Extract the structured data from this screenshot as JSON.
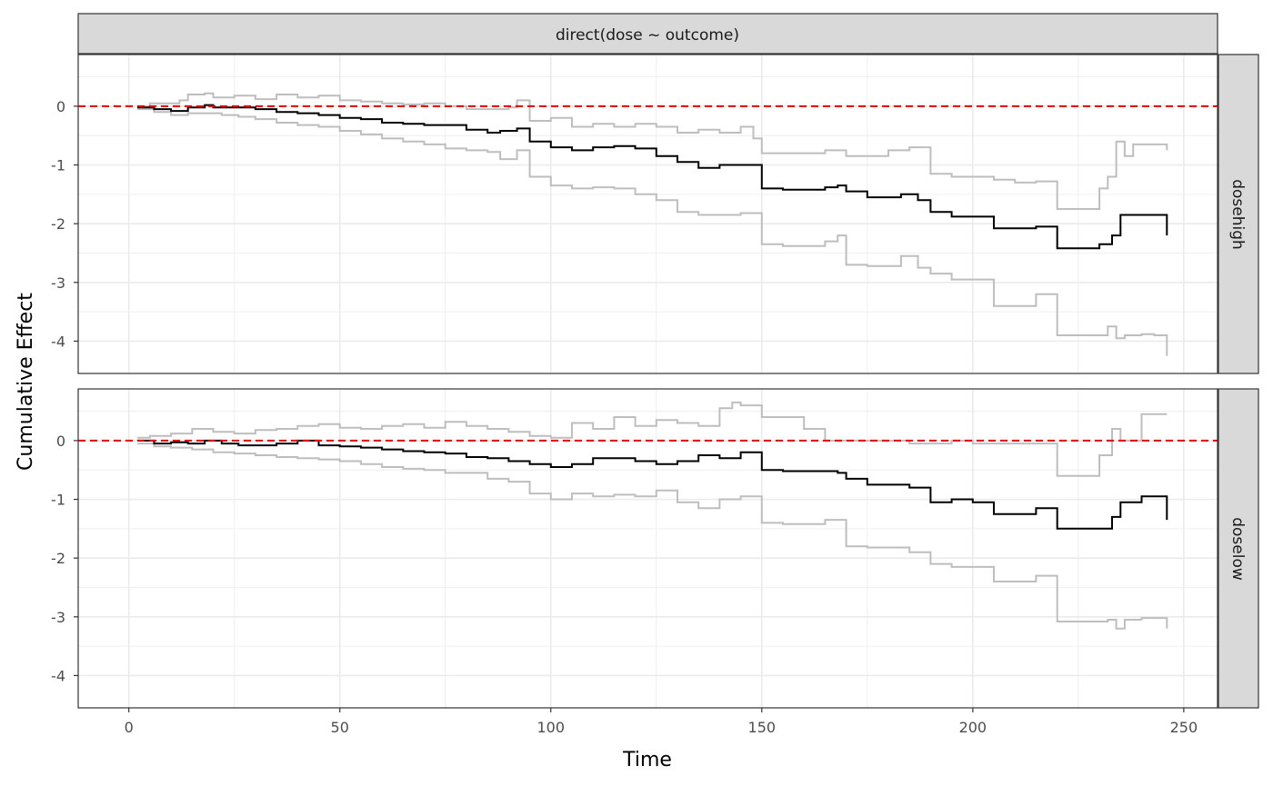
{
  "chart_data": {
    "type": "line",
    "strip_top": "direct(dose ~ outcome)",
    "xlabel": "Time",
    "ylabel": "Cumulative Effect",
    "xlim": [
      -12,
      258
    ],
    "ylim": [
      -4.55,
      0.88
    ],
    "x_ticks": [
      0,
      50,
      100,
      150,
      200,
      250
    ],
    "y_ticks": [
      0,
      -1,
      -2,
      -3,
      -4
    ],
    "reference_line": {
      "y": 0,
      "color": "#ee0000",
      "style": "dashed"
    },
    "grid": true,
    "colors": {
      "estimate": "#000000",
      "band": "#bebebe",
      "strip_fill": "#d9d9d9",
      "grid": "#ebebeb"
    },
    "panels": [
      {
        "name": "dosehigh",
        "series": [
          {
            "role": "upper",
            "x": [
              2,
              5,
              8,
              12,
              14,
              18,
              20,
              25,
              30,
              35,
              40,
              45,
              50,
              55,
              60,
              65,
              70,
              75,
              80,
              85,
              90,
              92,
              95,
              100,
              105,
              110,
              115,
              120,
              125,
              130,
              135,
              140,
              145,
              148,
              150,
              160,
              165,
              170,
              175,
              180,
              185,
              190,
              195,
              200,
              205,
              210,
              215,
              220,
              225,
              228,
              230,
              232,
              234,
              236,
              238,
              240,
              243,
              246
            ],
            "y": [
              0.0,
              0.05,
              0.05,
              0.1,
              0.2,
              0.22,
              0.15,
              0.18,
              0.12,
              0.2,
              0.15,
              0.18,
              0.1,
              0.08,
              0.05,
              0.03,
              0.05,
              0.0,
              -0.05,
              -0.05,
              -0.02,
              0.1,
              -0.25,
              -0.2,
              -0.35,
              -0.3,
              -0.35,
              -0.3,
              -0.35,
              -0.45,
              -0.4,
              -0.45,
              -0.35,
              -0.55,
              -0.8,
              -0.8,
              -0.75,
              -0.85,
              -0.85,
              -0.75,
              -0.7,
              -1.15,
              -1.2,
              -1.2,
              -1.25,
              -1.3,
              -1.28,
              -1.75,
              -1.75,
              -1.75,
              -1.4,
              -1.2,
              -0.6,
              -0.85,
              -0.65,
              -0.65,
              -0.65,
              -0.75
            ]
          },
          {
            "role": "estimate",
            "x": [
              2,
              6,
              10,
              14,
              18,
              20,
              25,
              30,
              35,
              40,
              45,
              50,
              55,
              60,
              65,
              70,
              75,
              80,
              85,
              88,
              92,
              95,
              100,
              105,
              110,
              115,
              120,
              125,
              130,
              135,
              140,
              145,
              150,
              155,
              160,
              165,
              168,
              170,
              175,
              180,
              183,
              187,
              190,
              195,
              200,
              205,
              210,
              215,
              220,
              225,
              230,
              233,
              235,
              240,
              243,
              246
            ],
            "y": [
              -0.02,
              -0.05,
              -0.08,
              -0.02,
              0.02,
              -0.02,
              -0.02,
              -0.05,
              -0.1,
              -0.12,
              -0.15,
              -0.2,
              -0.22,
              -0.28,
              -0.3,
              -0.32,
              -0.32,
              -0.4,
              -0.45,
              -0.42,
              -0.38,
              -0.6,
              -0.7,
              -0.75,
              -0.7,
              -0.68,
              -0.72,
              -0.85,
              -0.95,
              -1.05,
              -1.0,
              -1.0,
              -1.4,
              -1.42,
              -1.42,
              -1.38,
              -1.35,
              -1.45,
              -1.55,
              -1.55,
              -1.5,
              -1.6,
              -1.8,
              -1.88,
              -1.88,
              -2.08,
              -2.08,
              -2.05,
              -2.42,
              -2.42,
              -2.35,
              -2.2,
              -1.85,
              -1.85,
              -1.85,
              -2.2
            ]
          },
          {
            "role": "lower",
            "x": [
              2,
              6,
              10,
              14,
              18,
              22,
              26,
              30,
              35,
              40,
              45,
              50,
              55,
              60,
              65,
              70,
              75,
              80,
              85,
              88,
              92,
              95,
              100,
              105,
              110,
              115,
              120,
              125,
              130,
              135,
              140,
              145,
              150,
              155,
              160,
              165,
              168,
              170,
              175,
              180,
              183,
              187,
              190,
              195,
              200,
              205,
              210,
              215,
              220,
              225,
              230,
              232,
              234,
              236,
              240,
              243,
              246
            ],
            "y": [
              -0.05,
              -0.1,
              -0.15,
              -0.12,
              -0.12,
              -0.15,
              -0.18,
              -0.22,
              -0.28,
              -0.32,
              -0.35,
              -0.42,
              -0.48,
              -0.55,
              -0.6,
              -0.65,
              -0.72,
              -0.75,
              -0.78,
              -0.9,
              -0.75,
              -1.2,
              -1.35,
              -1.4,
              -1.38,
              -1.4,
              -1.5,
              -1.6,
              -1.8,
              -1.85,
              -1.85,
              -1.82,
              -2.35,
              -2.38,
              -2.38,
              -2.3,
              -2.2,
              -2.7,
              -2.72,
              -2.72,
              -2.55,
              -2.75,
              -2.85,
              -2.95,
              -2.95,
              -3.4,
              -3.4,
              -3.2,
              -3.9,
              -3.9,
              -3.9,
              -3.75,
              -3.95,
              -3.9,
              -3.88,
              -3.9,
              -4.25
            ]
          }
        ]
      },
      {
        "name": "doselow",
        "series": [
          {
            "role": "upper",
            "x": [
              2,
              5,
              10,
              15,
              20,
              25,
              30,
              35,
              40,
              45,
              50,
              55,
              60,
              65,
              70,
              75,
              80,
              85,
              90,
              95,
              100,
              105,
              110,
              115,
              120,
              125,
              130,
              135,
              140,
              143,
              145,
              150,
              160,
              165,
              170,
              175,
              180,
              185,
              190,
              195,
              200,
              205,
              210,
              215,
              220,
              225,
              230,
              233,
              235,
              240,
              243,
              246
            ],
            "y": [
              0.05,
              0.08,
              0.12,
              0.2,
              0.15,
              0.12,
              0.18,
              0.2,
              0.25,
              0.28,
              0.22,
              0.2,
              0.25,
              0.28,
              0.22,
              0.32,
              0.25,
              0.2,
              0.15,
              0.08,
              0.05,
              0.3,
              0.2,
              0.4,
              0.25,
              0.35,
              0.3,
              0.25,
              0.55,
              0.65,
              0.6,
              0.4,
              0.2,
              0.0,
              0.0,
              0.0,
              0.0,
              -0.05,
              -0.05,
              0.0,
              -0.05,
              -0.05,
              -0.05,
              -0.05,
              -0.6,
              -0.6,
              -0.25,
              0.2,
              0.0,
              0.45,
              0.45,
              0.45
            ]
          },
          {
            "role": "estimate",
            "x": [
              2,
              6,
              10,
              14,
              18,
              22,
              26,
              30,
              35,
              40,
              45,
              50,
              55,
              60,
              65,
              70,
              75,
              80,
              85,
              90,
              95,
              100,
              105,
              110,
              115,
              120,
              125,
              130,
              135,
              140,
              145,
              150,
              155,
              160,
              165,
              168,
              170,
              175,
              180,
              185,
              190,
              195,
              200,
              205,
              210,
              215,
              220,
              225,
              230,
              233,
              235,
              240,
              243,
              246
            ],
            "y": [
              0.0,
              -0.05,
              -0.03,
              -0.05,
              0.0,
              -0.05,
              -0.08,
              -0.08,
              -0.05,
              0.0,
              -0.08,
              -0.1,
              -0.12,
              -0.15,
              -0.18,
              -0.2,
              -0.22,
              -0.28,
              -0.3,
              -0.35,
              -0.4,
              -0.45,
              -0.4,
              -0.3,
              -0.3,
              -0.35,
              -0.4,
              -0.35,
              -0.25,
              -0.3,
              -0.2,
              -0.5,
              -0.52,
              -0.52,
              -0.52,
              -0.55,
              -0.65,
              -0.75,
              -0.75,
              -0.8,
              -1.05,
              -1.0,
              -1.05,
              -1.25,
              -1.25,
              -1.15,
              -1.5,
              -1.5,
              -1.5,
              -1.3,
              -1.05,
              -0.95,
              -0.95,
              -1.35
            ]
          },
          {
            "role": "lower",
            "x": [
              2,
              6,
              10,
              15,
              20,
              25,
              30,
              35,
              40,
              45,
              50,
              55,
              60,
              65,
              70,
              75,
              80,
              85,
              90,
              95,
              100,
              105,
              110,
              115,
              120,
              125,
              130,
              135,
              140,
              145,
              150,
              155,
              160,
              165,
              170,
              175,
              180,
              185,
              190,
              195,
              200,
              205,
              210,
              215,
              220,
              225,
              230,
              232,
              234,
              236,
              240,
              243,
              246
            ],
            "y": [
              -0.05,
              -0.1,
              -0.12,
              -0.15,
              -0.2,
              -0.22,
              -0.25,
              -0.28,
              -0.3,
              -0.32,
              -0.35,
              -0.4,
              -0.45,
              -0.48,
              -0.5,
              -0.55,
              -0.55,
              -0.65,
              -0.7,
              -0.9,
              -1.0,
              -0.9,
              -0.95,
              -0.92,
              -0.95,
              -0.85,
              -1.05,
              -1.15,
              -1.0,
              -0.95,
              -1.4,
              -1.42,
              -1.42,
              -1.35,
              -1.8,
              -1.82,
              -1.82,
              -1.9,
              -2.1,
              -2.15,
              -2.15,
              -2.4,
              -2.4,
              -2.3,
              -3.08,
              -3.08,
              -3.08,
              -3.05,
              -3.2,
              -3.05,
              -3.02,
              -3.02,
              -3.2
            ]
          }
        ]
      }
    ]
  }
}
